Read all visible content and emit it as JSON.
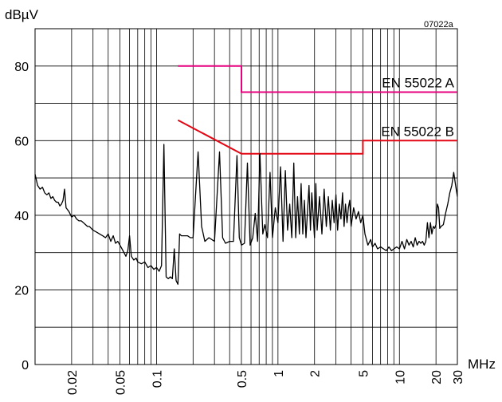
{
  "chart_data": {
    "type": "line",
    "code": "07022a",
    "ylabel": "dBµV",
    "xlabel": "MHz",
    "x_scale": "log",
    "xlim": [
      0.01,
      30
    ],
    "ylim": [
      0,
      90
    ],
    "yticks": [
      0,
      20,
      40,
      60,
      80
    ],
    "xticks": [
      {
        "value": 0.02,
        "label": "0.02"
      },
      {
        "value": 0.05,
        "label": "0.05"
      },
      {
        "value": 0.1,
        "label": "0.1"
      },
      {
        "value": 0.5,
        "label": "0.5"
      },
      {
        "value": 1,
        "label": "1"
      },
      {
        "value": 2,
        "label": "2"
      },
      {
        "value": 5,
        "label": "5"
      },
      {
        "value": 10,
        "label": "10"
      },
      {
        "value": 20,
        "label": "20"
      },
      {
        "value": 30,
        "label": "30"
      }
    ],
    "grid": true,
    "limits": [
      {
        "name": "EN 55022 A",
        "color": "#e6007e",
        "points": [
          [
            0.15,
            80
          ],
          [
            0.5,
            80
          ],
          [
            0.5,
            73
          ],
          [
            30,
            73
          ]
        ]
      },
      {
        "name": "EN 55022 B",
        "color": "#e30613",
        "points": [
          [
            0.15,
            65.5
          ],
          [
            0.5,
            56.5
          ],
          [
            5,
            56.5
          ],
          [
            5,
            60
          ],
          [
            30,
            60
          ]
        ]
      }
    ],
    "series": [
      {
        "color": "#000000",
        "points": [
          [
            0.01,
            51
          ],
          [
            0.0105,
            48
          ],
          [
            0.011,
            47
          ],
          [
            0.0115,
            47.5
          ],
          [
            0.012,
            46
          ],
          [
            0.0125,
            45.5
          ],
          [
            0.013,
            46
          ],
          [
            0.0135,
            44.5
          ],
          [
            0.014,
            45
          ],
          [
            0.0145,
            44
          ],
          [
            0.015,
            43.5
          ],
          [
            0.0155,
            43.5
          ],
          [
            0.016,
            42.5
          ],
          [
            0.0165,
            43
          ],
          [
            0.017,
            44
          ],
          [
            0.0175,
            47
          ],
          [
            0.018,
            42
          ],
          [
            0.019,
            41
          ],
          [
            0.02,
            39.5
          ],
          [
            0.021,
            40
          ],
          [
            0.022,
            39
          ],
          [
            0.023,
            38.5
          ],
          [
            0.024,
            38.5
          ],
          [
            0.025,
            38
          ],
          [
            0.026,
            37.5
          ],
          [
            0.027,
            37
          ],
          [
            0.028,
            37
          ],
          [
            0.029,
            36.5
          ],
          [
            0.03,
            36
          ],
          [
            0.032,
            35.5
          ],
          [
            0.034,
            35
          ],
          [
            0.036,
            34.5
          ],
          [
            0.038,
            34
          ],
          [
            0.04,
            35
          ],
          [
            0.042,
            33
          ],
          [
            0.044,
            34.5
          ],
          [
            0.046,
            32.5
          ],
          [
            0.048,
            33
          ],
          [
            0.05,
            32
          ],
          [
            0.052,
            31
          ],
          [
            0.054,
            30
          ],
          [
            0.056,
            29
          ],
          [
            0.058,
            30.5
          ],
          [
            0.06,
            34.5
          ],
          [
            0.062,
            29
          ],
          [
            0.065,
            28
          ],
          [
            0.068,
            28.5
          ],
          [
            0.07,
            27.5
          ],
          [
            0.075,
            27
          ],
          [
            0.08,
            27.5
          ],
          [
            0.085,
            26
          ],
          [
            0.09,
            26.5
          ],
          [
            0.095,
            25.5
          ],
          [
            0.1,
            26
          ],
          [
            0.105,
            25
          ],
          [
            0.11,
            26.5
          ],
          [
            0.115,
            59
          ],
          [
            0.12,
            23.5
          ],
          [
            0.125,
            23
          ],
          [
            0.13,
            23.5
          ],
          [
            0.135,
            23
          ],
          [
            0.14,
            31
          ],
          [
            0.145,
            22.5
          ],
          [
            0.15,
            21.5
          ],
          [
            0.155,
            35
          ],
          [
            0.16,
            34.5
          ],
          [
            0.17,
            34.5
          ],
          [
            0.18,
            34.5
          ],
          [
            0.19,
            34
          ],
          [
            0.2,
            34
          ],
          [
            0.22,
            57
          ],
          [
            0.235,
            37
          ],
          [
            0.25,
            33
          ],
          [
            0.27,
            34
          ],
          [
            0.3,
            33
          ],
          [
            0.33,
            57
          ],
          [
            0.35,
            34
          ],
          [
            0.37,
            32.5
          ],
          [
            0.4,
            33
          ],
          [
            0.43,
            33
          ],
          [
            0.46,
            56
          ],
          [
            0.48,
            34
          ],
          [
            0.5,
            32
          ],
          [
            0.53,
            32.5
          ],
          [
            0.56,
            54
          ],
          [
            0.59,
            32
          ],
          [
            0.62,
            34
          ],
          [
            0.65,
            40.5
          ],
          [
            0.68,
            33
          ],
          [
            0.71,
            56.5
          ],
          [
            0.75,
            35
          ],
          [
            0.78,
            37.5
          ],
          [
            0.82,
            34
          ],
          [
            0.86,
            51.5
          ],
          [
            0.9,
            34
          ],
          [
            0.95,
            42
          ],
          [
            1,
            38
          ],
          [
            1.05,
            53
          ],
          [
            1.1,
            33
          ],
          [
            1.15,
            52
          ],
          [
            1.2,
            36
          ],
          [
            1.25,
            43
          ],
          [
            1.3,
            34
          ],
          [
            1.35,
            54
          ],
          [
            1.4,
            34
          ],
          [
            1.45,
            45
          ],
          [
            1.5,
            35
          ],
          [
            1.55,
            48.5
          ],
          [
            1.6,
            35
          ],
          [
            1.65,
            44
          ],
          [
            1.7,
            34
          ],
          [
            1.8,
            48
          ],
          [
            1.85,
            36
          ],
          [
            1.9,
            46
          ],
          [
            2,
            34
          ],
          [
            2.05,
            48.5
          ],
          [
            2.1,
            36
          ],
          [
            2.2,
            45
          ],
          [
            2.3,
            35
          ],
          [
            2.4,
            47
          ],
          [
            2.5,
            37
          ],
          [
            2.6,
            45
          ],
          [
            2.7,
            36
          ],
          [
            2.8,
            44
          ],
          [
            2.9,
            38
          ],
          [
            3,
            45.5
          ],
          [
            3.1,
            36
          ],
          [
            3.2,
            43
          ],
          [
            3.3,
            39
          ],
          [
            3.4,
            46
          ],
          [
            3.5,
            37
          ],
          [
            3.6,
            43
          ],
          [
            3.7,
            38
          ],
          [
            3.8,
            42
          ],
          [
            3.9,
            44
          ],
          [
            4,
            37
          ],
          [
            4.2,
            42
          ],
          [
            4.4,
            39
          ],
          [
            4.6,
            41
          ],
          [
            4.8,
            38
          ],
          [
            5,
            40
          ],
          [
            5.2,
            35
          ],
          [
            5.5,
            32
          ],
          [
            5.8,
            33.5
          ],
          [
            6,
            31.5
          ],
          [
            6.3,
            32.5
          ],
          [
            6.6,
            31
          ],
          [
            7,
            31.5
          ],
          [
            7.4,
            31
          ],
          [
            7.8,
            30.5
          ],
          [
            8.2,
            31.5
          ],
          [
            8.6,
            30.5
          ],
          [
            9,
            31
          ],
          [
            9.5,
            31.5
          ],
          [
            10,
            31
          ],
          [
            10.5,
            33
          ],
          [
            11,
            31
          ],
          [
            11.5,
            33.5
          ],
          [
            12,
            32
          ],
          [
            12.5,
            33
          ],
          [
            13,
            31.5
          ],
          [
            13.5,
            34
          ],
          [
            14,
            32
          ],
          [
            14.5,
            33
          ],
          [
            15,
            32.5
          ],
          [
            15.5,
            33
          ],
          [
            16,
            32
          ],
          [
            16.5,
            33
          ],
          [
            17,
            38
          ],
          [
            17.5,
            34
          ],
          [
            18,
            38
          ],
          [
            18.5,
            35
          ],
          [
            19,
            37
          ],
          [
            19.5,
            36.5
          ],
          [
            20,
            37.5
          ],
          [
            20.5,
            43
          ],
          [
            21,
            42
          ],
          [
            21.5,
            36.5
          ],
          [
            22,
            37
          ],
          [
            23,
            37.5
          ],
          [
            24,
            40.5
          ],
          [
            25,
            43
          ],
          [
            26,
            46
          ],
          [
            27,
            48
          ],
          [
            28,
            51.5
          ],
          [
            29,
            48
          ],
          [
            30,
            45
          ]
        ]
      }
    ]
  }
}
